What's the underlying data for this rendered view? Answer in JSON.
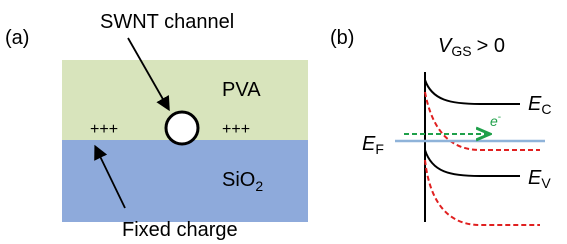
{
  "panel_a": {
    "label": "(a)",
    "callout_top": "SWNT channel",
    "layer_top": "PVA",
    "charges": [
      "+++",
      "+++"
    ],
    "layer_bottom": {
      "text": "SiO",
      "sub": "2"
    },
    "callout_bottom": "Fixed charge"
  },
  "panel_b": {
    "label": "(b)",
    "condition": {
      "symbol": "V",
      "sub": "GS",
      "rest": "> 0"
    },
    "conduction_band": {
      "symbol": "E",
      "sub": "C"
    },
    "fermi_level": {
      "symbol": "E",
      "sub": "F"
    },
    "valence_band": {
      "symbol": "E",
      "sub": "V"
    },
    "electron": {
      "symbol": "e",
      "sup": "-"
    }
  }
}
